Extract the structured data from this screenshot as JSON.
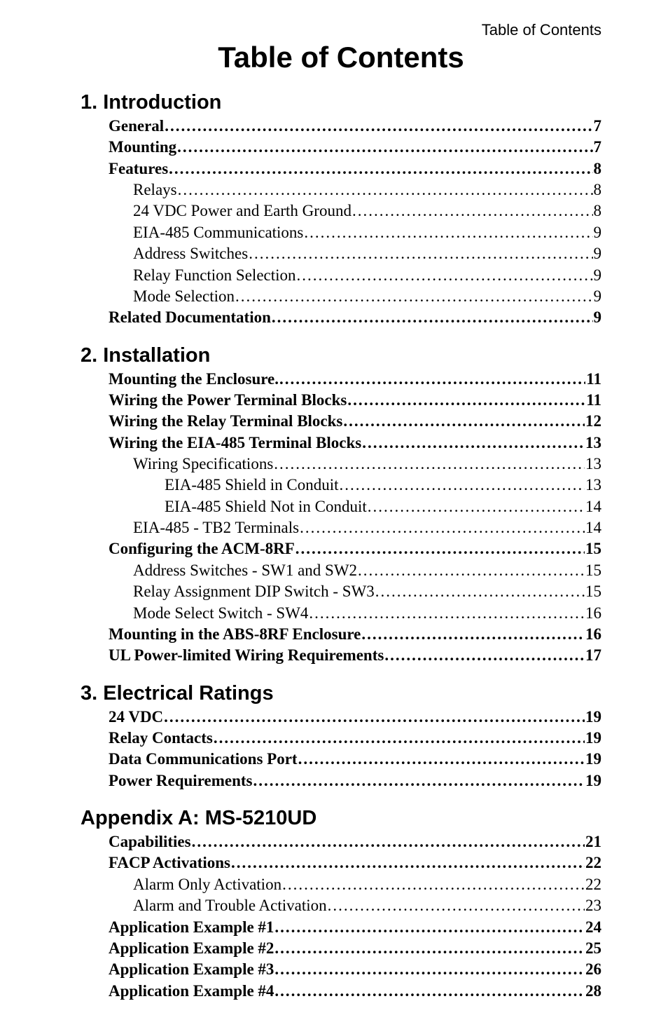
{
  "header_right": "Table of Contents",
  "main_title": "Table of Contents",
  "sections": [
    {
      "title": "1. Introduction",
      "entries": [
        {
          "text": "General",
          "page": "7",
          "indent": 0,
          "bold": true
        },
        {
          "text": "Mounting ",
          "page": "7",
          "indent": 0,
          "bold": true
        },
        {
          "text": "Features ",
          "page": "8",
          "indent": 0,
          "bold": true
        },
        {
          "text": "Relays ",
          "page": " 8",
          "indent": 1,
          "bold": false
        },
        {
          "text": "24 VDC Power and Earth Ground",
          "page": " 8",
          "indent": 1,
          "bold": false
        },
        {
          "text": "EIA-485 Communications",
          "page": " 9",
          "indent": 1,
          "bold": false
        },
        {
          "text": "Address Switches ",
          "page": " 9",
          "indent": 1,
          "bold": false
        },
        {
          "text": "Relay Function Selection",
          "page": " 9",
          "indent": 1,
          "bold": false
        },
        {
          "text": "Mode Selection",
          "page": " 9",
          "indent": 1,
          "bold": false
        },
        {
          "text": "Related Documentation",
          "page": "9",
          "indent": 0,
          "bold": true
        }
      ]
    },
    {
      "title": "2. Installation",
      "entries": [
        {
          "text": "Mounting the Enclosure.",
          "page": "11",
          "indent": 0,
          "bold": true
        },
        {
          "text": "Wiring the Power Terminal Blocks",
          "page": "11",
          "indent": 0,
          "bold": true
        },
        {
          "text": "Wiring the Relay Terminal Blocks",
          "page": "12",
          "indent": 0,
          "bold": true
        },
        {
          "text": "Wiring the EIA-485 Terminal Blocks",
          "page": "13",
          "indent": 0,
          "bold": true
        },
        {
          "text": "Wiring Specifications",
          "page": " 13",
          "indent": 1,
          "bold": false
        },
        {
          "text": "EIA-485 Shield in Conduit ",
          "page": " 13",
          "indent": 2,
          "bold": false
        },
        {
          "text": "EIA-485 Shield Not in Conduit ",
          "page": " 14",
          "indent": 2,
          "bold": false
        },
        {
          "text": "EIA-485 - TB2 Terminals ",
          "page": " 14",
          "indent": 1,
          "bold": false
        },
        {
          "text": "Configuring the ACM-8RF",
          "page": "15",
          "indent": 0,
          "bold": true
        },
        {
          "text": "Address Switches - SW1 and SW2 ",
          "page": " 15",
          "indent": 1,
          "bold": false
        },
        {
          "text": "Relay Assignment DIP Switch - SW3",
          "page": " 15",
          "indent": 1,
          "bold": false
        },
        {
          "text": "Mode Select Switch - SW4 ",
          "page": " 16",
          "indent": 1,
          "bold": false
        },
        {
          "text": "Mounting in the ABS-8RF Enclosure ",
          "page": "16",
          "indent": 0,
          "bold": true
        },
        {
          "text": "UL Power-limited Wiring Requirements ",
          "page": "17",
          "indent": 0,
          "bold": true
        }
      ]
    },
    {
      "title": "3. Electrical Ratings",
      "entries": [
        {
          "text": "24 VDC",
          "page": "19",
          "indent": 0,
          "bold": true
        },
        {
          "text": "Relay Contacts ",
          "page": "19",
          "indent": 0,
          "bold": true
        },
        {
          "text": "Data Communications Port ",
          "page": "19",
          "indent": 0,
          "bold": true
        },
        {
          "text": "Power Requirements ",
          "page": "19",
          "indent": 0,
          "bold": true
        }
      ]
    },
    {
      "title": "Appendix A: MS-5210UD",
      "entries": [
        {
          "text": "Capabilities",
          "page": "21",
          "indent": 0,
          "bold": true
        },
        {
          "text": "FACP Activations ",
          "page": "22",
          "indent": 0,
          "bold": true
        },
        {
          "text": "Alarm Only Activation",
          "page": " 22",
          "indent": 1,
          "bold": false
        },
        {
          "text": "Alarm and Trouble Activation ",
          "page": " 23",
          "indent": 1,
          "bold": false
        },
        {
          "text": "Application Example #1 ",
          "page": "24",
          "indent": 0,
          "bold": true
        },
        {
          "text": "Application Example #2 ",
          "page": "25",
          "indent": 0,
          "bold": true
        },
        {
          "text": "Application Example #3 ",
          "page": "26",
          "indent": 0,
          "bold": true
        },
        {
          "text": "Application Example #4 ",
          "page": "28",
          "indent": 0,
          "bold": true
        }
      ]
    }
  ]
}
